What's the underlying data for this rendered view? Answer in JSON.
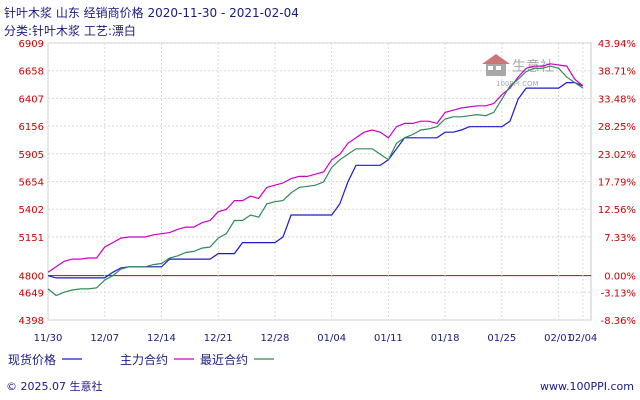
{
  "title": "针叶木浆 山东 经销商价格 2020-11-30 - 2021-02-04",
  "subtitle": "分类:针叶木浆 工艺:漂白",
  "watermark": "生意社",
  "watermark_url": "100PPI.COM",
  "footer_left": "© 2025.07 生意社",
  "footer_right": "www.100PPI.com",
  "colors": {
    "spot": "#1a1acc",
    "main_contract": "#cc00cc",
    "recent_contract": "#2e8b57",
    "zero_line": "#cc0000",
    "tick_text": "#cc0000",
    "title_text": "#1a1a80"
  },
  "chart_data": {
    "type": "line",
    "title": "针叶木浆 山东 经销商价格 2020-11-30 - 2021-02-04",
    "y_left_ticks": [
      "6909",
      "6658",
      "6407",
      "6156",
      "5905",
      "5654",
      "5402",
      "5151",
      "4800",
      "4649",
      "4398"
    ],
    "y_right_ticks": [
      "43.94%",
      "38.71%",
      "33.48%",
      "28.25%",
      "23.02%",
      "17.79%",
      "12.56%",
      "7.33%",
      "0.00%",
      "-3.13%",
      "-8.36%"
    ],
    "ylim": [
      4398,
      6909
    ],
    "x_ticks": [
      "11/30",
      "12/07",
      "12/14",
      "12/21",
      "12/28",
      "01/04",
      "01/11",
      "01/18",
      "01/25",
      "02/01",
      "02/04"
    ],
    "x_tick_days": [
      0,
      7,
      14,
      21,
      28,
      35,
      42,
      49,
      56,
      63,
      66
    ],
    "xlim": [
      0,
      67
    ],
    "grid": true,
    "legend_position": "bottom",
    "series": [
      {
        "name": "现货价格",
        "color": "#1a1acc",
        "x": [
          0,
          1,
          2,
          7,
          8,
          9,
          10,
          11,
          12,
          13,
          14,
          15,
          16,
          17,
          18,
          19,
          20,
          21,
          22,
          23,
          24,
          25,
          26,
          27,
          28,
          29,
          30,
          31,
          32,
          33,
          34,
          35,
          36,
          37,
          38,
          39,
          40,
          41,
          42,
          43,
          44,
          45,
          46,
          47,
          48,
          49,
          50,
          51,
          52,
          53,
          54,
          55,
          56,
          57,
          58,
          59,
          60,
          61,
          62,
          63,
          64,
          65,
          66
        ],
        "y": [
          4800,
          4780,
          4780,
          4780,
          4830,
          4870,
          4880,
          4880,
          4880,
          4880,
          4880,
          4950,
          4950,
          4950,
          4950,
          4950,
          4950,
          5000,
          5000,
          5000,
          5100,
          5100,
          5100,
          5100,
          5100,
          5150,
          5350,
          5350,
          5350,
          5350,
          5350,
          5350,
          5450,
          5650,
          5800,
          5800,
          5800,
          5800,
          5850,
          5950,
          6050,
          6050,
          6050,
          6050,
          6050,
          6100,
          6100,
          6120,
          6150,
          6150,
          6150,
          6150,
          6150,
          6200,
          6400,
          6500,
          6500,
          6500,
          6500,
          6500,
          6550,
          6550,
          6520
        ]
      },
      {
        "name": "主力合约",
        "color": "#cc00cc",
        "x": [
          0,
          1,
          2,
          3,
          4,
          5,
          6,
          7,
          8,
          9,
          10,
          11,
          12,
          13,
          14,
          15,
          16,
          17,
          18,
          19,
          20,
          21,
          22,
          23,
          24,
          25,
          26,
          27,
          28,
          29,
          30,
          31,
          32,
          33,
          34,
          35,
          36,
          37,
          38,
          39,
          40,
          41,
          42,
          43,
          44,
          45,
          46,
          47,
          48,
          49,
          50,
          51,
          52,
          53,
          54,
          55,
          56,
          57,
          58,
          59,
          60,
          61,
          62,
          63,
          64,
          65,
          66
        ],
        "y": [
          4830,
          4880,
          4930,
          4950,
          4950,
          4960,
          4960,
          5060,
          5100,
          5140,
          5150,
          5150,
          5150,
          5170,
          5180,
          5190,
          5220,
          5240,
          5240,
          5280,
          5300,
          5380,
          5400,
          5480,
          5480,
          5520,
          5500,
          5600,
          5620,
          5640,
          5680,
          5700,
          5700,
          5720,
          5740,
          5850,
          5900,
          6000,
          6050,
          6100,
          6120,
          6100,
          6050,
          6150,
          6180,
          6180,
          6200,
          6200,
          6180,
          6280,
          6300,
          6320,
          6330,
          6340,
          6340,
          6360,
          6440,
          6500,
          6600,
          6680,
          6700,
          6700,
          6720,
          6710,
          6700,
          6580,
          6520
        ]
      },
      {
        "name": "最近合约",
        "color": "#2e8b57",
        "x": [
          0,
          1,
          2,
          3,
          4,
          5,
          6,
          7,
          8,
          9,
          10,
          11,
          12,
          13,
          14,
          15,
          16,
          17,
          18,
          19,
          20,
          21,
          22,
          23,
          24,
          25,
          26,
          27,
          28,
          29,
          30,
          31,
          32,
          33,
          34,
          35,
          36,
          37,
          38,
          39,
          40,
          41,
          42,
          43,
          44,
          45,
          46,
          47,
          48,
          49,
          50,
          51,
          52,
          53,
          54,
          55,
          56,
          57,
          58,
          59,
          60,
          61,
          62,
          63,
          64,
          65,
          66
        ],
        "y": [
          4680,
          4620,
          4650,
          4670,
          4680,
          4680,
          4690,
          4760,
          4800,
          4860,
          4880,
          4880,
          4880,
          4900,
          4910,
          4960,
          4980,
          5010,
          5020,
          5050,
          5060,
          5140,
          5180,
          5300,
          5300,
          5350,
          5330,
          5450,
          5470,
          5480,
          5550,
          5600,
          5610,
          5620,
          5650,
          5780,
          5850,
          5900,
          5950,
          5950,
          5950,
          5900,
          5850,
          6000,
          6050,
          6080,
          6120,
          6130,
          6150,
          6220,
          6240,
          6240,
          6250,
          6260,
          6250,
          6280,
          6400,
          6520,
          6580,
          6650,
          6680,
          6680,
          6700,
          6680,
          6600,
          6550,
          6500
        ]
      }
    ]
  }
}
